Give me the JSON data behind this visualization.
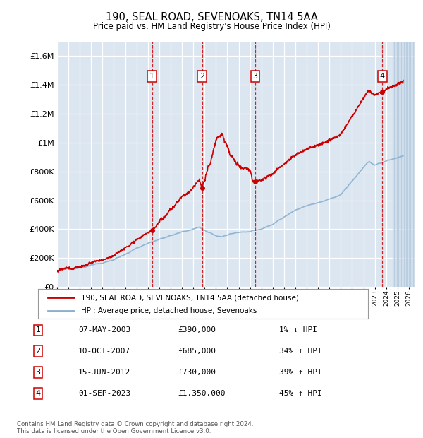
{
  "title": "190, SEAL ROAD, SEVENOAKS, TN14 5AA",
  "subtitle": "Price paid vs. HM Land Registry's House Price Index (HPI)",
  "hpi_label": "HPI: Average price, detached house, Sevenoaks",
  "property_label": "190, SEAL ROAD, SEVENOAKS, TN14 5AA (detached house)",
  "footer": "Contains HM Land Registry data © Crown copyright and database right 2024.\nThis data is licensed under the Open Government Licence v3.0.",
  "ylim": [
    0,
    1700000
  ],
  "yticks": [
    0,
    200000,
    400000,
    600000,
    800000,
    1000000,
    1200000,
    1400000,
    1600000
  ],
  "ytick_labels": [
    "£0",
    "£200K",
    "£400K",
    "£600K",
    "£800K",
    "£1M",
    "£1.2M",
    "£1.4M",
    "£1.6M"
  ],
  "xmin": 1995.0,
  "xmax": 2026.5,
  "plot_bg_color": "#dce6f0",
  "hpi_color": "#8ab0d0",
  "property_color": "#cc0000",
  "sale_color": "#cc0000",
  "dashed_line_color": "#cc0000",
  "sale_points": [
    {
      "num": 1,
      "year": 2003.36,
      "price": 390000,
      "label": "07-MAY-2003",
      "amount": "£390,000",
      "hpi_rel": "1% ↓ HPI"
    },
    {
      "num": 2,
      "year": 2007.78,
      "price": 685000,
      "label": "10-OCT-2007",
      "amount": "£685,000",
      "hpi_rel": "34% ↑ HPI"
    },
    {
      "num": 3,
      "year": 2012.46,
      "price": 730000,
      "label": "15-JUN-2012",
      "amount": "£730,000",
      "hpi_rel": "39% ↑ HPI"
    },
    {
      "num": 4,
      "year": 2023.67,
      "price": 1350000,
      "label": "01-SEP-2023",
      "amount": "£1,350,000",
      "hpi_rel": "45% ↑ HPI"
    }
  ]
}
